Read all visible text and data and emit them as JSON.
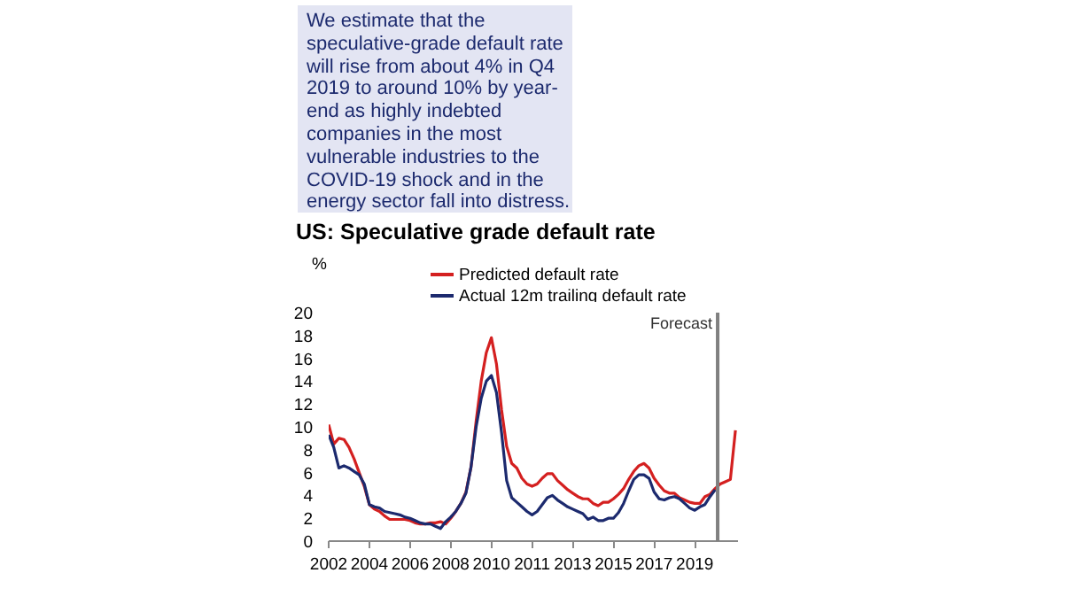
{
  "chart_data": {
    "type": "line",
    "title": "US: Speculative grade default rate",
    "ylabel": "%",
    "annotations": [
      "We estimate that the speculative-grade default rate will rise from about 4% in Q4 2019 to around 10% by year-end as highly indebted companies in the most vulnerable industries to the COVID-19 shock and in the energy sector fall into distress.",
      "Forecast"
    ],
    "categories": [
      "2002",
      null,
      null,
      null,
      null,
      null,
      null,
      null,
      "2004",
      null,
      null,
      null,
      null,
      null,
      null,
      null,
      "2006",
      null,
      null,
      null,
      null,
      null,
      null,
      null,
      "2008",
      null,
      null,
      null,
      null,
      null,
      null,
      null,
      "2010",
      null,
      null,
      null,
      null,
      null,
      null,
      null,
      "2011",
      null,
      null,
      null,
      null,
      null,
      null,
      null,
      "2013",
      null,
      null,
      null,
      null,
      null,
      null,
      null,
      "2015",
      null,
      null,
      null,
      null,
      null,
      null,
      null,
      "2017",
      null,
      null,
      null,
      null,
      null,
      null,
      null,
      "2019",
      null,
      null,
      null,
      null,
      null,
      null,
      null,
      null
    ],
    "series": [
      {
        "name": "Predicted default rate",
        "color": "#d42020",
        "values": [
          10.2,
          8.5,
          9.0,
          8.9,
          8.2,
          7.2,
          6.0,
          4.8,
          3.2,
          2.8,
          2.6,
          2.2,
          1.9,
          1.9,
          1.9,
          1.9,
          1.8,
          1.6,
          1.5,
          1.5,
          1.6,
          1.6,
          1.7,
          1.5,
          2.0,
          2.6,
          3.3,
          4.3,
          6.5,
          10.5,
          14.0,
          16.5,
          17.8,
          15.5,
          11.5,
          8.3,
          6.8,
          6.4,
          5.5,
          5.0,
          4.8,
          5.0,
          5.5,
          5.9,
          5.9,
          5.3,
          4.9,
          4.5,
          4.2,
          3.9,
          3.7,
          3.7,
          3.3,
          3.1,
          3.4,
          3.4,
          3.7,
          4.1,
          4.6,
          5.4,
          6.1,
          6.6,
          6.8,
          6.4,
          5.5,
          4.9,
          4.4,
          4.2,
          4.2,
          3.8,
          3.6,
          3.4,
          3.3,
          3.3,
          3.9,
          4.1,
          4.6,
          5.0,
          5.2,
          5.4,
          9.7
        ]
      },
      {
        "name": "Actual 12m trailing default rate",
        "color": "#1c2a6e",
        "values": [
          9.3,
          8.2,
          6.4,
          6.6,
          6.4,
          6.1,
          5.8,
          5.0,
          3.2,
          3.0,
          2.9,
          2.6,
          2.5,
          2.4,
          2.3,
          2.1,
          2.0,
          1.8,
          1.6,
          1.5,
          1.5,
          1.3,
          1.1,
          1.7,
          2.1,
          2.6,
          3.3,
          4.2,
          6.5,
          10.0,
          12.5,
          14.0,
          14.5,
          13.0,
          9.5,
          5.3,
          3.8,
          3.4,
          3.0,
          2.6,
          2.3,
          2.6,
          3.2,
          3.8,
          4.0,
          3.6,
          3.3,
          3.0,
          2.8,
          2.6,
          2.4,
          1.9,
          2.1,
          1.8,
          1.8,
          2.0,
          2.0,
          2.5,
          3.3,
          4.4,
          5.4,
          5.8,
          5.8,
          5.5,
          4.3,
          3.7,
          3.6,
          3.8,
          3.9,
          3.7,
          3.3,
          2.9,
          2.7,
          3.0,
          3.2,
          3.9,
          4.5,
          null,
          null,
          null,
          null
        ]
      }
    ],
    "ylim": [
      0,
      20
    ],
    "yticks": [
      0,
      2,
      4,
      6,
      8,
      10,
      12,
      14,
      16,
      18,
      20
    ],
    "legend": "top",
    "grid": false
  }
}
